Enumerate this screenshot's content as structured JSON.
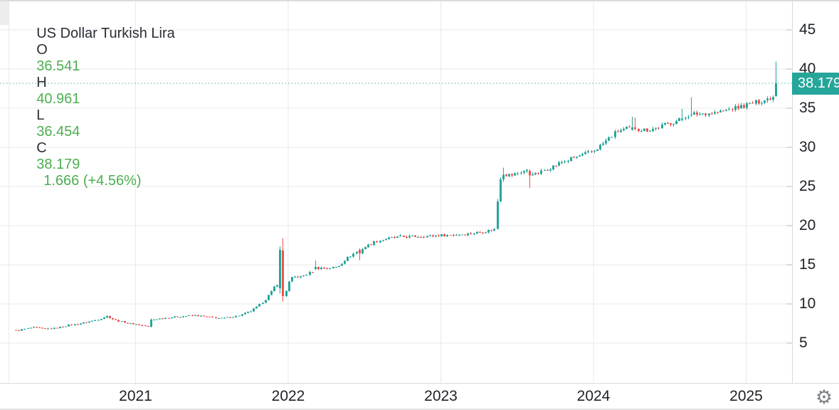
{
  "legend": {
    "title": "US Dollar Turkish Lira",
    "open_label": "O",
    "open_value": "36.541",
    "high_label": "H",
    "high_value": "40.961",
    "low_label": "L",
    "low_value": "36.454",
    "close_label": "C",
    "close_value": "38.179",
    "change_text": "1.666 (+4.56%)"
  },
  "price_label": {
    "text": "38.179",
    "value": 38.179
  },
  "icons": {
    "gear": "⚙"
  },
  "colors": {
    "up": "#26a69a",
    "down": "#ef5350",
    "legend_change": "#4caf50",
    "title_text": "#2a2e35",
    "axis_text": "#1e2126",
    "grid": "#e9e9eb",
    "axis_border": "#d8dade",
    "price_line": "#26a69a",
    "badge_bg": "#26a69a",
    "badge_text": "#ffffff",
    "gear": "#7d8187"
  },
  "chart_data": {
    "type": "candlestick",
    "title": "US Dollar Turkish Lira",
    "timeframe": "weekly",
    "current_ohlc": {
      "open": 36.541,
      "high": 40.961,
      "low": 36.454,
      "close": 38.179,
      "change": 1.666,
      "change_pct": 4.56
    },
    "last_price": 38.179,
    "y_ticks": [
      5,
      10,
      15,
      20,
      25,
      30,
      35,
      40,
      45
    ],
    "y_range": [
      0,
      48.7
    ],
    "x_ticks": [
      {
        "label": "2021",
        "year": 2021
      },
      {
        "label": "2022",
        "year": 2022
      },
      {
        "label": "2023",
        "year": 2023
      },
      {
        "label": "2024",
        "year": 2024
      },
      {
        "label": "2025",
        "year": 2025
      }
    ],
    "x_domain_years": [
      2020.215,
      2025.205
    ],
    "candles_per_year": 52,
    "anchors": [
      [
        2020.215,
        6.6
      ],
      [
        2020.27,
        6.78
      ],
      [
        2020.33,
        7.0
      ],
      [
        2020.4,
        6.82
      ],
      [
        2020.47,
        6.9
      ],
      [
        2020.55,
        7.25
      ],
      [
        2020.62,
        7.45
      ],
      [
        2020.69,
        7.72
      ],
      [
        2020.76,
        8.05
      ],
      [
        2020.81,
        8.45
      ],
      [
        2020.86,
        7.95
      ],
      [
        2020.95,
        7.55
      ],
      [
        2021.03,
        7.3
      ],
      [
        2021.08,
        7.1
      ],
      [
        2021.12,
        8.05
      ],
      [
        2021.2,
        8.22
      ],
      [
        2021.3,
        8.4
      ],
      [
        2021.38,
        8.55
      ],
      [
        2021.47,
        8.35
      ],
      [
        2021.56,
        8.15
      ],
      [
        2021.62,
        8.3
      ],
      [
        2021.68,
        8.55
      ],
      [
        2021.75,
        9.05
      ],
      [
        2021.8,
        9.7
      ],
      [
        2021.85,
        10.6
      ],
      [
        2021.89,
        11.6
      ],
      [
        2021.92,
        12.6
      ],
      [
        2021.985,
        11.7
      ],
      [
        2022.005,
        12.9
      ],
      [
        2022.03,
        13.5
      ],
      [
        2022.08,
        13.45
      ],
      [
        2022.12,
        13.8
      ],
      [
        2022.2,
        14.6
      ],
      [
        2022.26,
        14.55
      ],
      [
        2022.32,
        14.75
      ],
      [
        2022.38,
        15.8
      ],
      [
        2022.44,
        16.6
      ],
      [
        2022.5,
        17.25
      ],
      [
        2022.56,
        17.9
      ],
      [
        2022.63,
        18.3
      ],
      [
        2022.72,
        18.55
      ],
      [
        2022.82,
        18.62
      ],
      [
        2022.92,
        18.68
      ],
      [
        2023.02,
        18.78
      ],
      [
        2023.12,
        18.88
      ],
      [
        2023.22,
        19.05
      ],
      [
        2023.31,
        19.35
      ],
      [
        2023.36,
        19.6
      ],
      [
        2023.42,
        26.5
      ],
      [
        2023.47,
        26.45
      ],
      [
        2023.53,
        26.95
      ],
      [
        2023.57,
        27.0
      ],
      [
        2023.62,
        26.55
      ],
      [
        2023.7,
        27.3
      ],
      [
        2023.78,
        28.0
      ],
      [
        2023.86,
        28.6
      ],
      [
        2023.94,
        29.1
      ],
      [
        2024.0,
        29.55
      ],
      [
        2024.08,
        30.8
      ],
      [
        2024.15,
        32.0
      ],
      [
        2024.22,
        32.4
      ],
      [
        2024.3,
        32.3
      ],
      [
        2024.36,
        32.2
      ],
      [
        2024.42,
        32.55
      ],
      [
        2024.5,
        33.1
      ],
      [
        2024.56,
        33.5
      ],
      [
        2024.6,
        34.0
      ],
      [
        2024.66,
        34.25
      ],
      [
        2024.74,
        34.35
      ],
      [
        2024.82,
        34.5
      ],
      [
        2024.88,
        34.8
      ],
      [
        2024.94,
        35.1
      ],
      [
        2025.0,
        35.4
      ],
      [
        2025.06,
        35.75
      ],
      [
        2025.12,
        36.05
      ],
      [
        2025.18,
        36.5
      ],
      [
        2025.205,
        38.179
      ]
    ],
    "special_candles": [
      {
        "t": 2021.105,
        "o": 7.1,
        "h": 8.15,
        "l": 7.02,
        "c": 8.0
      },
      {
        "t": 2021.945,
        "o": 12.0,
        "h": 17.35,
        "l": 11.3,
        "c": 16.9
      },
      {
        "t": 2021.965,
        "o": 16.8,
        "h": 18.4,
        "l": 10.3,
        "c": 11.0
      },
      {
        "t": 2022.17,
        "o": 14.45,
        "h": 15.55,
        "l": 14.3,
        "c": 14.75
      },
      {
        "t": 2022.465,
        "o": 16.9,
        "h": 17.1,
        "l": 15.6,
        "c": 16.45
      },
      {
        "t": 2023.375,
        "o": 19.6,
        "h": 23.4,
        "l": 19.5,
        "c": 23.1
      },
      {
        "t": 2023.395,
        "o": 23.1,
        "h": 26.2,
        "l": 23.0,
        "c": 25.9
      },
      {
        "t": 2023.415,
        "o": 25.9,
        "h": 27.4,
        "l": 25.6,
        "c": 26.5
      },
      {
        "t": 2023.585,
        "o": 27.0,
        "h": 27.2,
        "l": 24.8,
        "c": 26.4
      },
      {
        "t": 2024.245,
        "o": 32.3,
        "h": 33.9,
        "l": 32.1,
        "c": 32.55
      },
      {
        "t": 2024.265,
        "o": 32.55,
        "h": 33.8,
        "l": 32.15,
        "c": 32.35
      },
      {
        "t": 2024.575,
        "o": 33.5,
        "h": 34.9,
        "l": 33.3,
        "c": 33.7
      },
      {
        "t": 2024.63,
        "o": 34.1,
        "h": 36.4,
        "l": 33.9,
        "c": 34.2
      },
      {
        "t": 2025.205,
        "o": 36.541,
        "h": 40.961,
        "l": 36.454,
        "c": 38.179
      }
    ]
  }
}
